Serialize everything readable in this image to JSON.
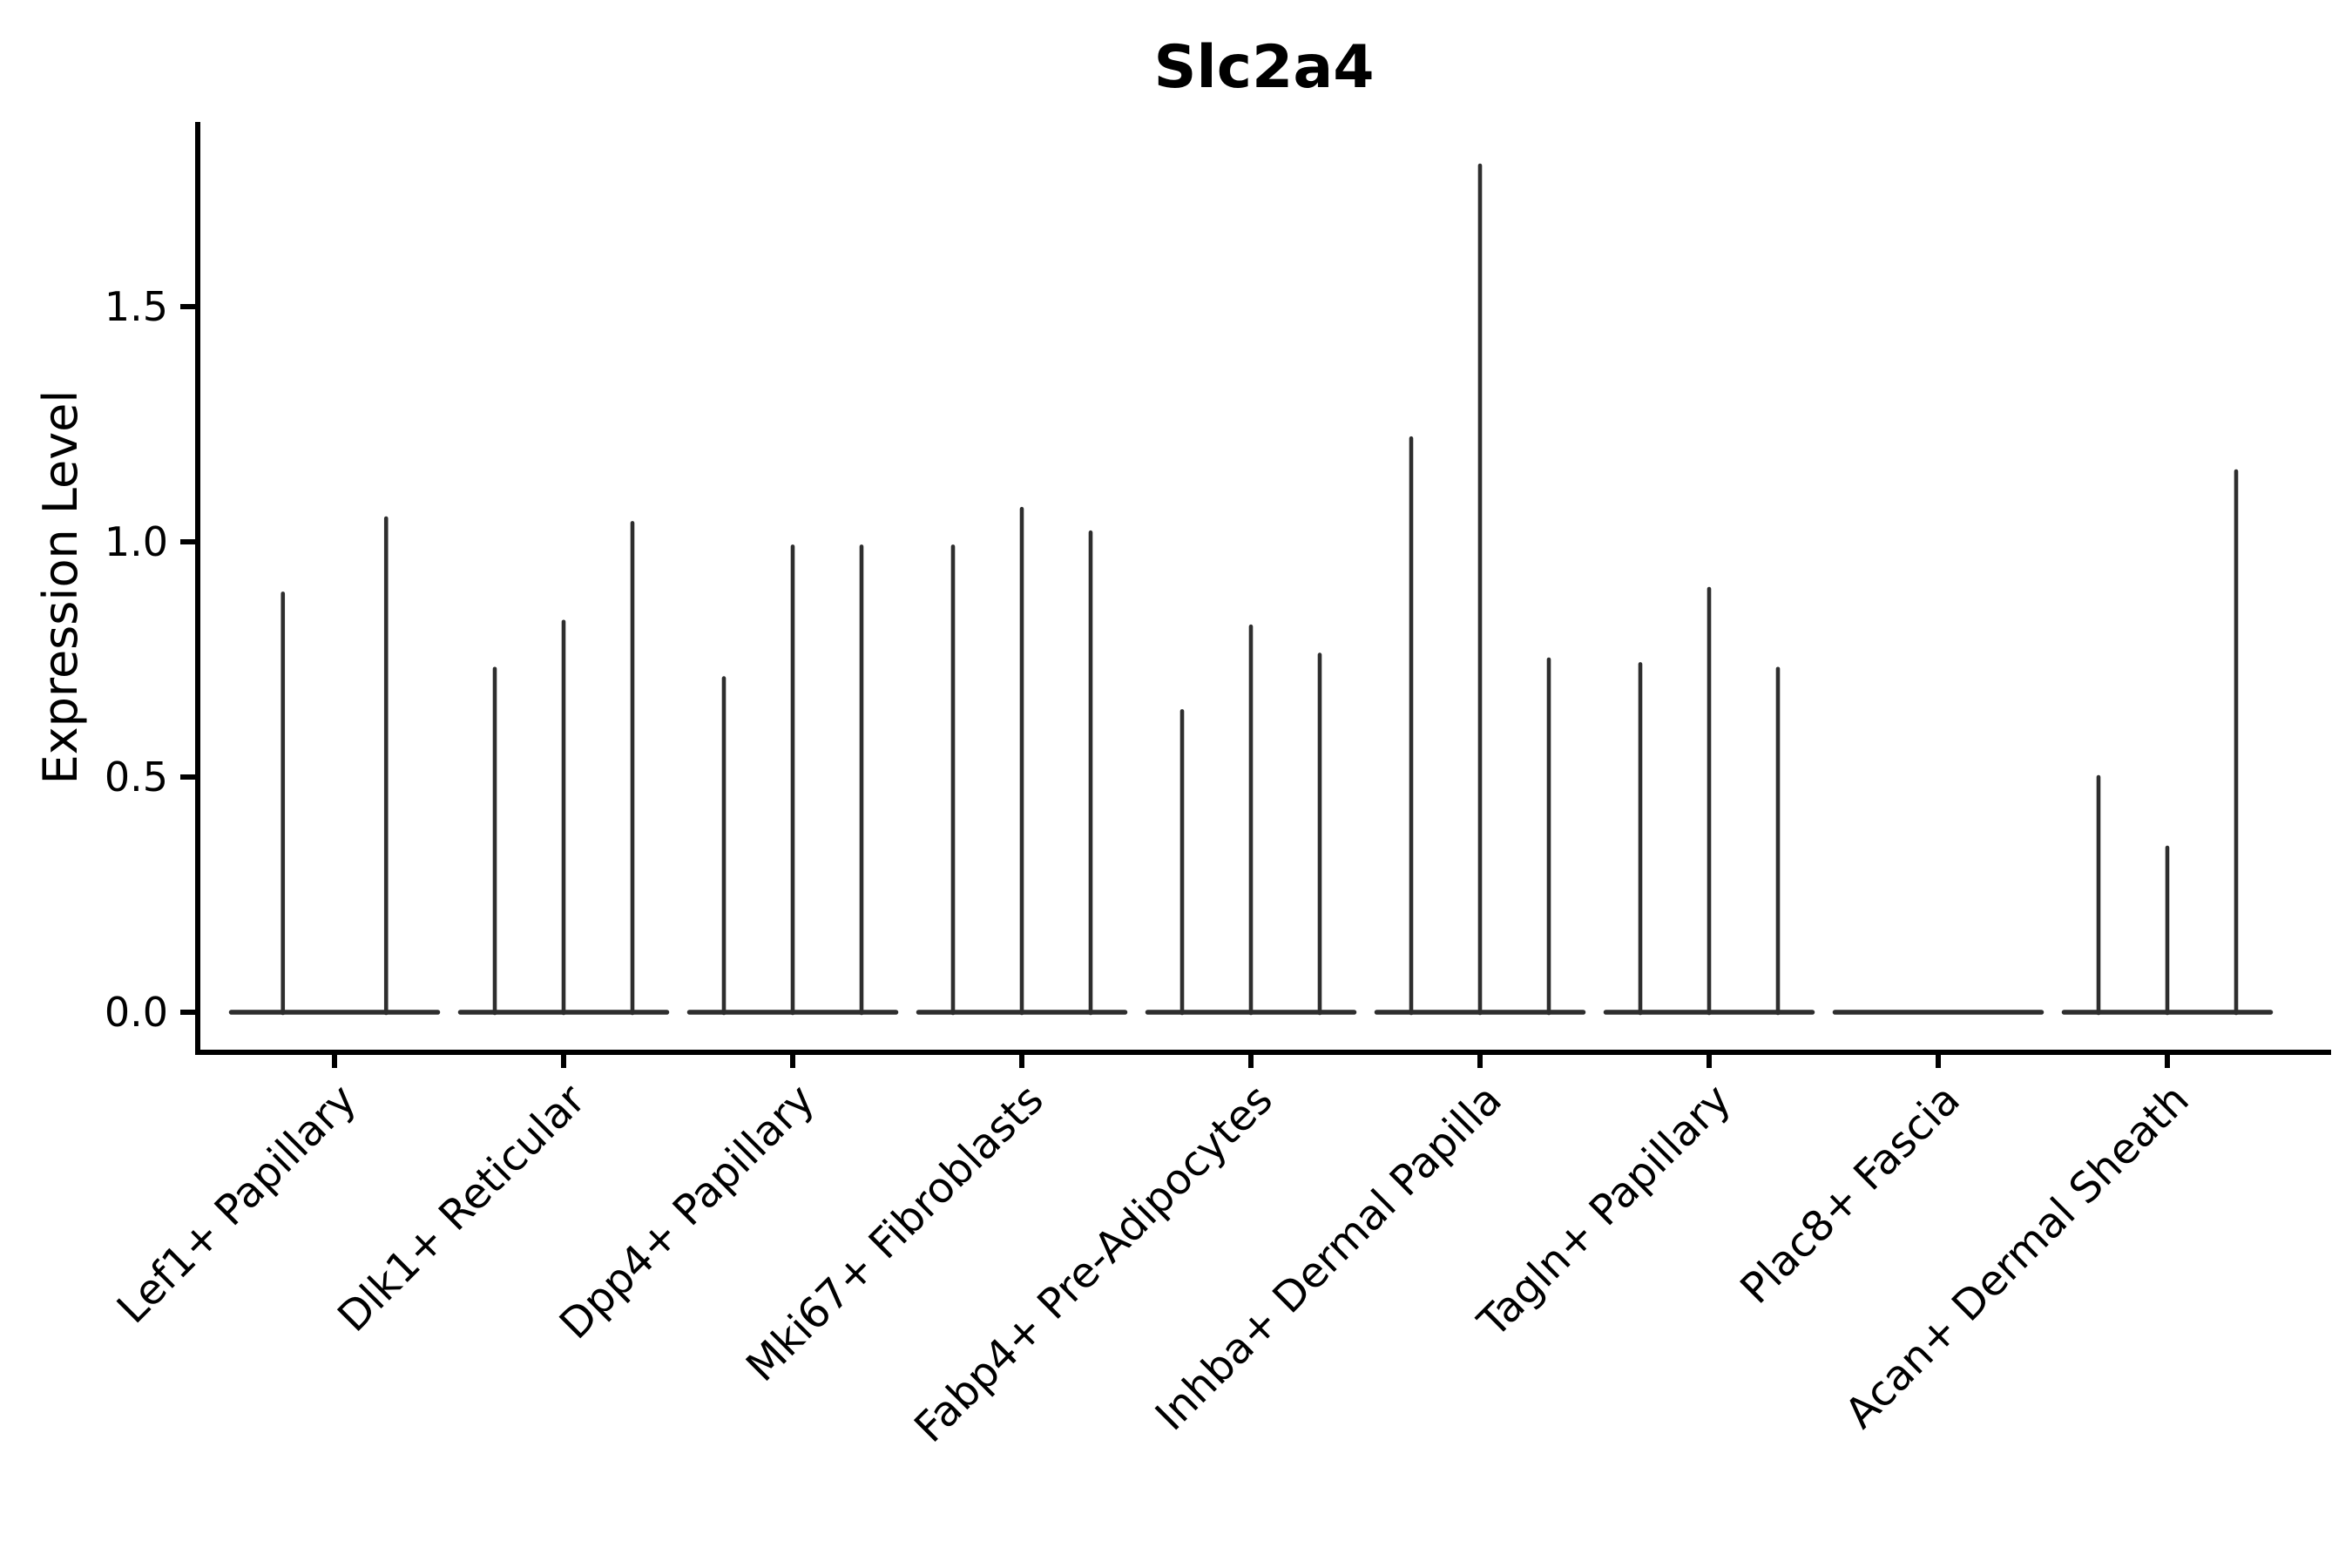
{
  "title": "Slc2a4",
  "chart_data": {
    "type": "violin",
    "title": "Slc2a4",
    "xlabel": "",
    "ylabel": "Expression Level",
    "categories": [
      "Lef1+ Papillary",
      "Dlk1+ Reticular",
      "Dpp4+ Papillary",
      "Mki67+ Fibroblasts",
      "Fabp4+ Pre-Adipocytes",
      "Inhba+ Dermal Papilla",
      "Tagln+ Papillary",
      "Plac8+ Fascia",
      "Acan+ Dermal Sheath"
    ],
    "violins": [
      {
        "category": "Lef1+ Papillary",
        "spike_max_values": [
          0.89,
          1.05
        ]
      },
      {
        "category": "Dlk1+ Reticular",
        "spike_max_values": [
          0.73,
          0.83,
          1.04
        ]
      },
      {
        "category": "Dpp4+ Papillary",
        "spike_max_values": [
          0.71,
          0.99,
          0.99
        ]
      },
      {
        "category": "Mki67+ Fibroblasts",
        "spike_max_values": [
          0.99,
          1.07,
          1.02
        ]
      },
      {
        "category": "Fabp4+ Pre-Adipocytes",
        "spike_max_values": [
          0.64,
          0.82,
          0.76
        ]
      },
      {
        "category": "Inhba+ Dermal Papilla",
        "spike_max_values": [
          1.22,
          1.8,
          0.75
        ]
      },
      {
        "category": "Tagln+ Papillary",
        "spike_max_values": [
          0.74,
          0.9,
          0.73
        ]
      },
      {
        "category": "Plac8+ Fascia",
        "spike_max_values": [
          0.0,
          0.0,
          0.0
        ]
      },
      {
        "category": "Acan+ Dermal Sheath",
        "spike_max_values": [
          0.5,
          0.35,
          1.15
        ]
      }
    ],
    "yticks": [
      0.0,
      0.5,
      1.0,
      1.5
    ],
    "ytick_labels": [
      "0.0",
      "0.5",
      "1.0",
      "1.5"
    ],
    "ylim": [
      -0.085,
      1.89
    ],
    "grid": false,
    "legend": false,
    "x_tick_rotation_degrees": 45,
    "colors": {
      "violin": "#2e2e2e",
      "axis": "#000000",
      "text": "#000000",
      "background": "#ffffff"
    }
  }
}
